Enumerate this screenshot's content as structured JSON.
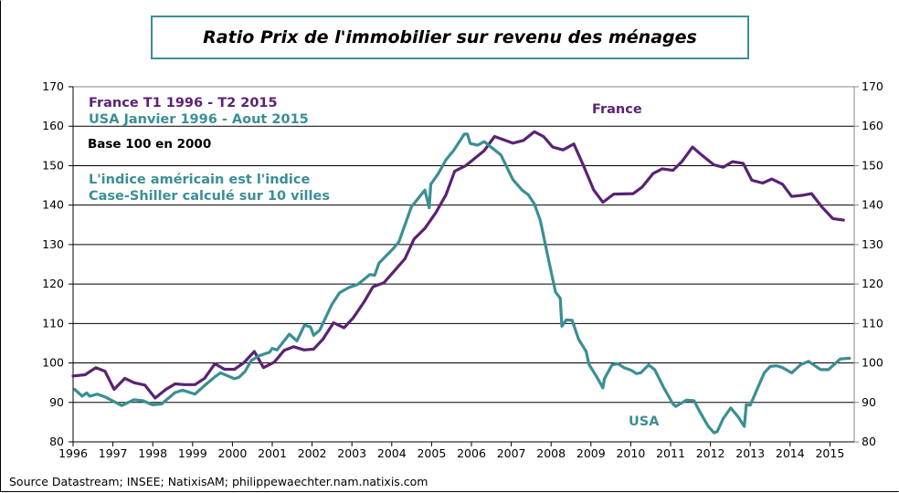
{
  "colors": {
    "france": "#5a2372",
    "usa": "#3a8f94",
    "grid": "#000000"
  },
  "chart_data": {
    "type": "line",
    "title": "Ratio Prix de l'immobilier sur revenu des ménages",
    "xlim": [
      1996,
      2015.6
    ],
    "ylim": [
      80,
      170
    ],
    "yticks": [
      80,
      90,
      100,
      110,
      120,
      130,
      140,
      150,
      160,
      170
    ],
    "xticks": [
      1996,
      1997,
      1998,
      1999,
      2000,
      2001,
      2002,
      2003,
      2004,
      2005,
      2006,
      2007,
      2008,
      2009,
      2010,
      2011,
      2012,
      2013,
      2014,
      2015
    ],
    "grid": true,
    "annotations": {
      "legend_france": "France T1 1996 - T2 2015",
      "legend_usa": "USA Janvier 1996 - Aout 2015",
      "base": "Base 100 en 2000",
      "note_line1": "L'indice américain  est l'indice",
      "note_line2": "Case-Shiller  calculé  sur  10 villes",
      "label_france": "France",
      "label_usa": "USA"
    },
    "series": [
      {
        "name": "France",
        "points": [
          [
            1996.0,
            96.7
          ],
          [
            1996.3,
            97.0
          ],
          [
            1996.57,
            98.8
          ],
          [
            1996.8,
            97.9
          ],
          [
            1997.03,
            93.3
          ],
          [
            1997.3,
            96.1
          ],
          [
            1997.53,
            95.0
          ],
          [
            1997.8,
            94.4
          ],
          [
            1998.06,
            91.1
          ],
          [
            1998.33,
            93.3
          ],
          [
            1998.56,
            94.7
          ],
          [
            1998.8,
            94.5
          ],
          [
            1999.06,
            94.5
          ],
          [
            1999.3,
            96.1
          ],
          [
            1999.56,
            99.8
          ],
          [
            1999.8,
            98.4
          ],
          [
            2000.05,
            98.4
          ],
          [
            2000.28,
            100.0
          ],
          [
            2000.55,
            102.9
          ],
          [
            2000.78,
            98.8
          ],
          [
            2001.05,
            100.2
          ],
          [
            2001.3,
            103.2
          ],
          [
            2001.54,
            104.1
          ],
          [
            2001.8,
            103.3
          ],
          [
            2002.04,
            103.5
          ],
          [
            2002.27,
            106.0
          ],
          [
            2002.54,
            110.2
          ],
          [
            2002.8,
            108.9
          ],
          [
            2003.03,
            111.4
          ],
          [
            2003.3,
            115.4
          ],
          [
            2003.53,
            119.3
          ],
          [
            2003.8,
            120.3
          ],
          [
            2004.07,
            123.4
          ],
          [
            2004.33,
            126.4
          ],
          [
            2004.56,
            131.4
          ],
          [
            2004.83,
            134.1
          ],
          [
            2005.1,
            138.0
          ],
          [
            2005.36,
            142.6
          ],
          [
            2005.58,
            148.6
          ],
          [
            2005.86,
            150.0
          ],
          [
            2006.32,
            153.8
          ],
          [
            2006.58,
            157.4
          ],
          [
            2007.04,
            155.7
          ],
          [
            2007.31,
            156.4
          ],
          [
            2007.58,
            158.6
          ],
          [
            2007.81,
            157.4
          ],
          [
            2008.04,
            154.7
          ],
          [
            2008.3,
            154.0
          ],
          [
            2008.57,
            155.5
          ],
          [
            2008.8,
            150.3
          ],
          [
            2009.07,
            143.8
          ],
          [
            2009.3,
            140.7
          ],
          [
            2009.57,
            142.8
          ],
          [
            2010.06,
            142.9
          ],
          [
            2010.29,
            144.6
          ],
          [
            2010.56,
            148.0
          ],
          [
            2010.79,
            149.2
          ],
          [
            2011.06,
            148.8
          ],
          [
            2011.29,
            151.1
          ],
          [
            2011.55,
            154.7
          ],
          [
            2011.78,
            152.7
          ],
          [
            2012.09,
            150.2
          ],
          [
            2012.32,
            149.6
          ],
          [
            2012.55,
            151.0
          ],
          [
            2012.82,
            150.6
          ],
          [
            2013.04,
            146.3
          ],
          [
            2013.31,
            145.6
          ],
          [
            2013.54,
            146.6
          ],
          [
            2013.81,
            145.3
          ],
          [
            2014.04,
            142.2
          ],
          [
            2014.31,
            142.5
          ],
          [
            2014.54,
            142.9
          ],
          [
            2014.8,
            139.5
          ],
          [
            2015.07,
            136.6
          ],
          [
            2015.34,
            136.2
          ]
        ]
      },
      {
        "name": "USA",
        "points": [
          [
            1996.04,
            93.3
          ],
          [
            1996.23,
            91.6
          ],
          [
            1996.34,
            92.4
          ],
          [
            1996.42,
            91.6
          ],
          [
            1996.61,
            92.1
          ],
          [
            1996.8,
            91.4
          ],
          [
            1997.03,
            90.2
          ],
          [
            1997.22,
            89.2
          ],
          [
            1997.53,
            90.7
          ],
          [
            1997.76,
            90.4
          ],
          [
            1997.99,
            89.4
          ],
          [
            1998.22,
            89.6
          ],
          [
            1998.56,
            92.5
          ],
          [
            1998.75,
            93.1
          ],
          [
            1999.06,
            92.1
          ],
          [
            1999.36,
            94.8
          ],
          [
            1999.59,
            96.7
          ],
          [
            1999.7,
            97.5
          ],
          [
            2000.05,
            96.0
          ],
          [
            2000.17,
            96.4
          ],
          [
            2000.32,
            97.9
          ],
          [
            2000.47,
            100.6
          ],
          [
            2000.66,
            101.8
          ],
          [
            2000.93,
            102.7
          ],
          [
            2001.0,
            103.7
          ],
          [
            2001.12,
            103.3
          ],
          [
            2001.43,
            107.3
          ],
          [
            2001.62,
            105.6
          ],
          [
            2001.81,
            109.6
          ],
          [
            2001.96,
            109.1
          ],
          [
            2002.04,
            107.0
          ],
          [
            2002.19,
            108.3
          ],
          [
            2002.5,
            114.9
          ],
          [
            2002.69,
            117.8
          ],
          [
            2002.92,
            119.1
          ],
          [
            2003.15,
            119.9
          ],
          [
            2003.45,
            122.4
          ],
          [
            2003.57,
            122.2
          ],
          [
            2003.68,
            125.3
          ],
          [
            2004.03,
            128.9
          ],
          [
            2004.18,
            130.7
          ],
          [
            2004.49,
            139.5
          ],
          [
            2004.83,
            143.8
          ],
          [
            2004.94,
            139.3
          ],
          [
            2004.98,
            145.3
          ],
          [
            2005.17,
            148.0
          ],
          [
            2005.36,
            151.5
          ],
          [
            2005.55,
            153.8
          ],
          [
            2005.82,
            158.0
          ],
          [
            2005.9,
            158.0
          ],
          [
            2005.97,
            155.6
          ],
          [
            2006.16,
            155.2
          ],
          [
            2006.32,
            156.1
          ],
          [
            2006.74,
            152.7
          ],
          [
            2007.04,
            146.5
          ],
          [
            2007.27,
            143.8
          ],
          [
            2007.43,
            142.6
          ],
          [
            2007.58,
            140.3
          ],
          [
            2007.73,
            136.1
          ],
          [
            2007.88,
            128.8
          ],
          [
            2008.11,
            118.0
          ],
          [
            2008.23,
            116.4
          ],
          [
            2008.27,
            109.3
          ],
          [
            2008.38,
            110.9
          ],
          [
            2008.53,
            110.8
          ],
          [
            2008.69,
            106.0
          ],
          [
            2008.88,
            102.9
          ],
          [
            2008.95,
            99.7
          ],
          [
            2009.15,
            96.4
          ],
          [
            2009.3,
            93.7
          ],
          [
            2009.34,
            96.0
          ],
          [
            2009.53,
            99.5
          ],
          [
            2009.68,
            99.8
          ],
          [
            2009.83,
            98.8
          ],
          [
            2010.02,
            98.1
          ],
          [
            2010.14,
            97.3
          ],
          [
            2010.25,
            97.5
          ],
          [
            2010.45,
            99.5
          ],
          [
            2010.6,
            98.3
          ],
          [
            2010.83,
            93.7
          ],
          [
            2011.06,
            89.6
          ],
          [
            2011.13,
            89.0
          ],
          [
            2011.4,
            90.6
          ],
          [
            2011.59,
            90.4
          ],
          [
            2011.74,
            87.5
          ],
          [
            2011.94,
            84.0
          ],
          [
            2012.09,
            82.3
          ],
          [
            2012.17,
            82.6
          ],
          [
            2012.32,
            85.9
          ],
          [
            2012.51,
            88.6
          ],
          [
            2012.7,
            86.3
          ],
          [
            2012.85,
            83.9
          ],
          [
            2012.9,
            89.4
          ],
          [
            2013.0,
            89.3
          ],
          [
            2013.35,
            97.5
          ],
          [
            2013.5,
            99.1
          ],
          [
            2013.66,
            99.3
          ],
          [
            2013.81,
            98.8
          ],
          [
            2014.04,
            97.5
          ],
          [
            2014.27,
            99.6
          ],
          [
            2014.46,
            100.4
          ],
          [
            2014.77,
            98.3
          ],
          [
            2014.96,
            98.3
          ],
          [
            2015.26,
            101.0
          ],
          [
            2015.49,
            101.2
          ]
        ]
      }
    ],
    "source": "Source Datastream; INSEE; NatixisAM; philippewaechter.nam.natixis.com"
  }
}
